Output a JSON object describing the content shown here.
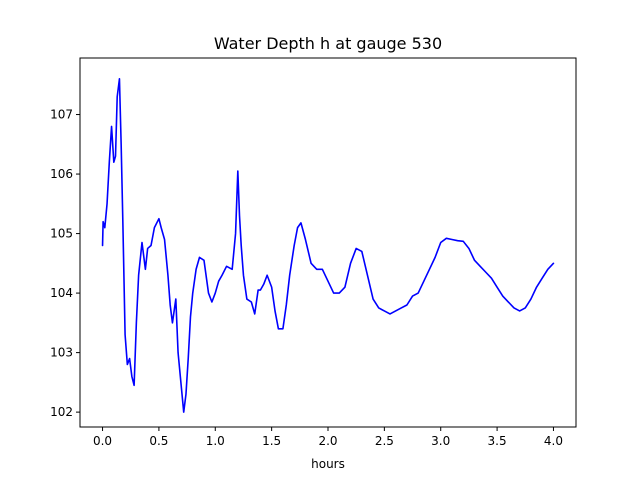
{
  "chart_data": {
    "type": "line",
    "title": "Water Depth h at gauge 530",
    "xlabel": "hours",
    "ylabel": "",
    "xlim": [
      -0.2,
      4.2
    ],
    "ylim": [
      101.75,
      107.95
    ],
    "xticks": [
      0.0,
      0.5,
      1.0,
      1.5,
      2.0,
      2.5,
      3.0,
      3.5,
      4.0
    ],
    "xtick_labels": [
      "0.0",
      "0.5",
      "1.0",
      "1.5",
      "2.0",
      "2.5",
      "3.0",
      "3.5",
      "4.0"
    ],
    "yticks": [
      102,
      103,
      104,
      105,
      106,
      107
    ],
    "ytick_labels": [
      "102",
      "103",
      "104",
      "105",
      "106",
      "107"
    ],
    "grid": false,
    "series": [
      {
        "color": "#0000ff",
        "x": [
          0.0,
          0.005,
          0.02,
          0.04,
          0.06,
          0.08,
          0.1,
          0.115,
          0.13,
          0.15,
          0.165,
          0.18,
          0.2,
          0.22,
          0.24,
          0.26,
          0.28,
          0.3,
          0.32,
          0.35,
          0.38,
          0.4,
          0.43,
          0.46,
          0.5,
          0.52,
          0.55,
          0.58,
          0.6,
          0.62,
          0.65,
          0.67,
          0.7,
          0.72,
          0.74,
          0.76,
          0.78,
          0.8,
          0.83,
          0.86,
          0.9,
          0.94,
          0.97,
          1.0,
          1.03,
          1.06,
          1.1,
          1.15,
          1.18,
          1.2,
          1.215,
          1.23,
          1.25,
          1.28,
          1.32,
          1.35,
          1.38,
          1.4,
          1.43,
          1.46,
          1.5,
          1.53,
          1.56,
          1.6,
          1.63,
          1.66,
          1.7,
          1.73,
          1.76,
          1.8,
          1.85,
          1.9,
          1.95,
          2.0,
          2.05,
          2.1,
          2.15,
          2.2,
          2.25,
          2.3,
          2.35,
          2.4,
          2.45,
          2.5,
          2.55,
          2.6,
          2.65,
          2.7,
          2.75,
          2.8,
          2.85,
          2.9,
          2.95,
          3.0,
          3.05,
          3.1,
          3.15,
          3.2,
          3.25,
          3.3,
          3.35,
          3.4,
          3.45,
          3.5,
          3.55,
          3.6,
          3.65,
          3.7,
          3.75,
          3.8,
          3.85,
          3.9,
          3.95,
          4.0
        ],
        "y": [
          104.8,
          105.2,
          105.1,
          105.5,
          106.2,
          106.8,
          106.2,
          106.3,
          107.3,
          107.6,
          106.5,
          105.2,
          103.3,
          102.8,
          102.9,
          102.6,
          102.45,
          103.5,
          104.3,
          104.85,
          104.4,
          104.75,
          104.8,
          105.1,
          105.25,
          105.1,
          104.9,
          104.3,
          103.8,
          103.5,
          103.9,
          103.0,
          102.4,
          102.0,
          102.3,
          102.9,
          103.6,
          104.0,
          104.4,
          104.6,
          104.55,
          104.0,
          103.85,
          104.0,
          104.2,
          104.3,
          104.45,
          104.4,
          105.0,
          106.05,
          105.3,
          104.8,
          104.3,
          103.9,
          103.85,
          103.65,
          104.05,
          104.05,
          104.15,
          104.3,
          104.1,
          103.7,
          103.4,
          103.4,
          103.8,
          104.3,
          104.8,
          105.1,
          105.18,
          104.9,
          104.5,
          104.4,
          104.4,
          104.2,
          104.0,
          104.0,
          104.1,
          104.5,
          104.75,
          104.7,
          104.3,
          103.9,
          103.75,
          103.7,
          103.65,
          103.7,
          103.75,
          103.8,
          103.95,
          104.0,
          104.2,
          104.4,
          104.6,
          104.85,
          104.92,
          104.9,
          104.88,
          104.87,
          104.75,
          104.55,
          104.45,
          104.35,
          104.25,
          104.1,
          103.95,
          103.85,
          103.75,
          103.7,
          103.75,
          103.9,
          104.1,
          104.25,
          104.4,
          104.5
        ]
      }
    ]
  }
}
